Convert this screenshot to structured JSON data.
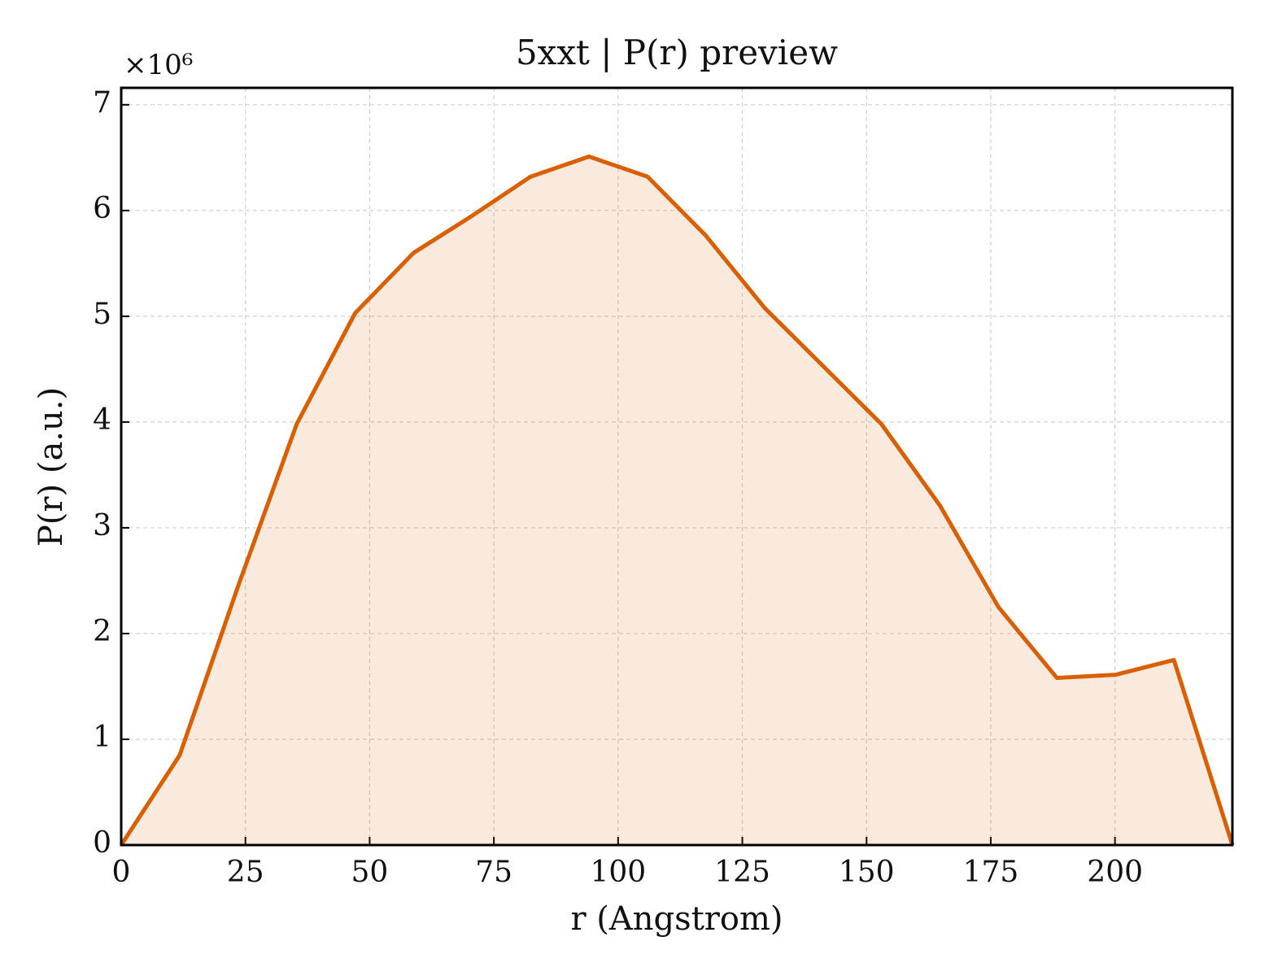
{
  "chart_data": {
    "type": "line",
    "title": "5xxt | P(r) preview",
    "xlabel": "r (Angstrom)",
    "ylabel": "P(r) (a.u.)",
    "y_offset_label": "×10⁶",
    "x": [
      0,
      11.77,
      23.54,
      35.31,
      47.08,
      58.85,
      70.62,
      82.39,
      94.16,
      105.93,
      117.7,
      129.47,
      141.24,
      153.01,
      164.78,
      176.55,
      188.32,
      200.09,
      211.86,
      223.63
    ],
    "values": [
      0,
      0.85,
      2.45,
      3.98,
      5.03,
      5.6,
      5.95,
      6.32,
      6.51,
      6.32,
      5.76,
      5.08,
      4.53,
      3.98,
      3.21,
      2.25,
      1.58,
      1.61,
      1.75,
      0
    ],
    "color": "#d95f02",
    "fill": true,
    "xlim": [
      0,
      223.63
    ],
    "xticks": [
      0,
      25,
      50,
      75,
      100,
      125,
      150,
      175,
      200
    ],
    "ylim": [
      0,
      7.16
    ],
    "yticks": [
      0,
      1,
      2,
      3,
      4,
      5,
      6,
      7
    ],
    "grid": true
  }
}
